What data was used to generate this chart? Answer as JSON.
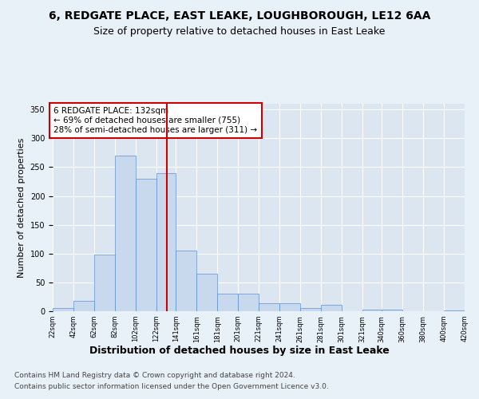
{
  "title1": "6, REDGATE PLACE, EAST LEAKE, LOUGHBOROUGH, LE12 6AA",
  "title2": "Size of property relative to detached houses in East Leake",
  "xlabel": "Distribution of detached houses by size in East Leake",
  "ylabel": "Number of detached properties",
  "footer1": "Contains HM Land Registry data © Crown copyright and database right 2024.",
  "footer2": "Contains public sector information licensed under the Open Government Licence v3.0.",
  "annotation_line1": "6 REDGATE PLACE: 132sqm",
  "annotation_line2": "← 69% of detached houses are smaller (755)",
  "annotation_line3": "28% of semi-detached houses are larger (311) →",
  "bar_left_edges": [
    22,
    42,
    62,
    82,
    102,
    122,
    141,
    161,
    181,
    201,
    221,
    241,
    261,
    281,
    301,
    321,
    340,
    360,
    380,
    400
  ],
  "bar_widths": [
    20,
    20,
    20,
    20,
    20,
    19,
    20,
    20,
    20,
    20,
    20,
    20,
    20,
    20,
    20,
    19,
    20,
    20,
    20,
    20
  ],
  "bar_heights": [
    6,
    18,
    99,
    270,
    230,
    240,
    105,
    65,
    30,
    30,
    14,
    14,
    6,
    11,
    0,
    3,
    3,
    0,
    0,
    2
  ],
  "bar_color": "#c9d9ed",
  "bar_edge_color": "#5b8fd4",
  "vline_color": "#cc0000",
  "vline_x": 132,
  "annotation_box_color": "#cc0000",
  "background_color": "#e8f0f8",
  "plot_bg_color": "#dce6f1",
  "ylim": [
    0,
    360
  ],
  "yticks": [
    0,
    50,
    100,
    150,
    200,
    250,
    300,
    350
  ],
  "tick_labels": [
    "22sqm",
    "42sqm",
    "62sqm",
    "82sqm",
    "102sqm",
    "122sqm",
    "141sqm",
    "161sqm",
    "181sqm",
    "201sqm",
    "221sqm",
    "241sqm",
    "261sqm",
    "281sqm",
    "301sqm",
    "321sqm",
    "340sqm",
    "360sqm",
    "380sqm",
    "400sqm",
    "420sqm"
  ],
  "title1_fontsize": 10,
  "title2_fontsize": 9,
  "xlabel_fontsize": 9,
  "ylabel_fontsize": 8,
  "annotation_fontsize": 7.5,
  "footer_fontsize": 6.5
}
